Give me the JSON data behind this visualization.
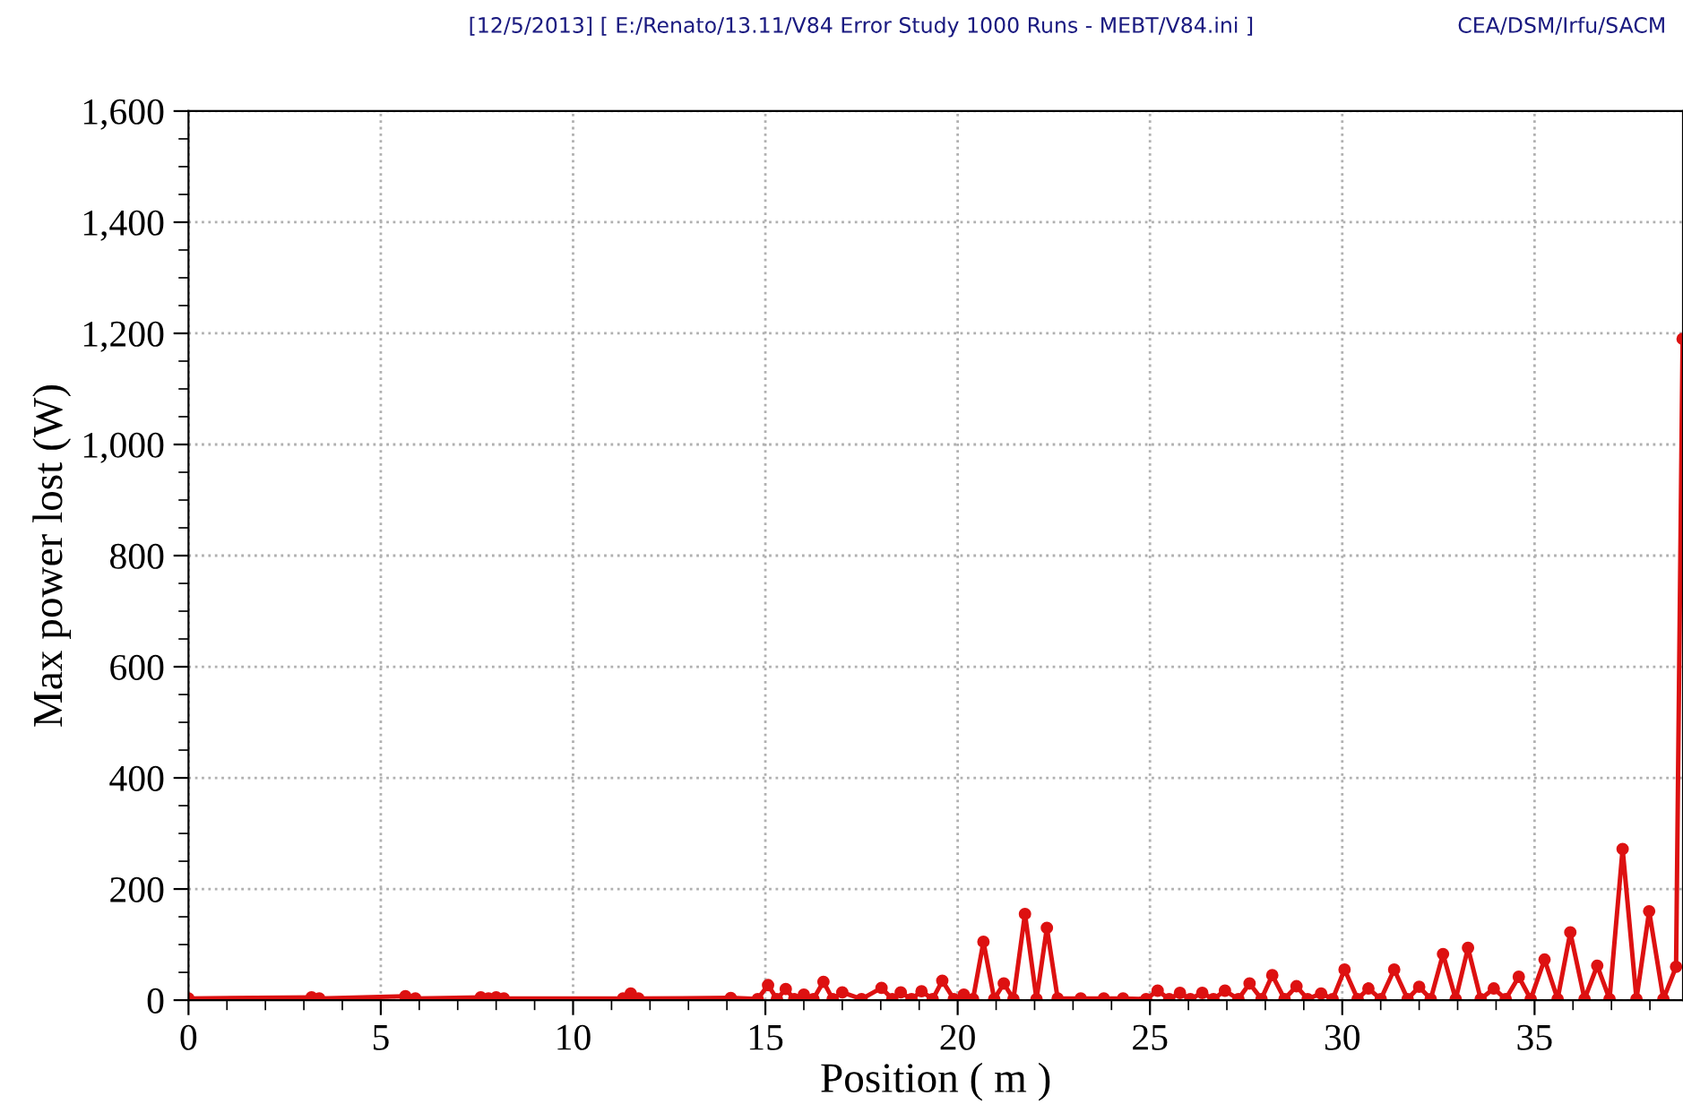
{
  "chart_data": {
    "type": "line",
    "xlabel": "Position ( m )",
    "ylabel": "Max power lost (W)",
    "annotations": [
      "[12/5/2013] [ E:/Renato/13.11/V84 Error Study 1000 Runs - MEBT/V84.ini ]",
      "CEA/DSM/Irfu/SACM"
    ],
    "x": [
      0,
      3.2,
      3.4,
      5.64,
      5.9,
      7.6,
      7.8,
      8.0,
      8.2,
      11.3,
      11.5,
      11.7,
      14.1,
      14.8,
      15.07,
      15.3,
      15.53,
      15.75,
      16.0,
      16.25,
      16.51,
      16.75,
      17.0,
      17.5,
      18.02,
      18.3,
      18.52,
      18.8,
      19.06,
      19.35,
      19.6,
      19.9,
      20.16,
      20.4,
      20.67,
      20.95,
      21.2,
      21.45,
      21.75,
      22.05,
      22.32,
      22.6,
      23.2,
      23.8,
      24.3,
      24.9,
      25.2,
      25.5,
      25.78,
      26.05,
      26.36,
      26.65,
      26.95,
      27.3,
      27.59,
      27.9,
      28.18,
      28.5,
      28.81,
      29.1,
      29.45,
      29.75,
      30.06,
      30.4,
      30.68,
      31.0,
      31.35,
      31.7,
      32.0,
      32.3,
      32.62,
      32.95,
      33.27,
      33.6,
      33.94,
      34.25,
      34.59,
      34.9,
      35.26,
      35.6,
      35.93,
      36.3,
      36.63,
      36.95,
      37.29,
      37.65,
      37.98,
      38.35,
      38.68,
      38.85
    ],
    "series": [
      {
        "color": "#dd1111",
        "values": [
          3,
          5,
          3,
          7,
          3,
          5,
          3,
          5,
          3,
          3,
          12,
          3,
          4,
          2,
          27,
          2,
          20,
          2,
          10,
          2,
          33,
          2,
          14,
          2,
          22,
          2,
          14,
          2,
          16,
          2,
          35,
          2,
          10,
          2,
          105,
          2,
          30,
          2,
          155,
          2,
          130,
          3,
          3,
          3,
          3,
          2,
          17,
          2,
          13,
          2,
          13,
          2,
          17,
          2,
          30,
          2,
          45,
          2,
          25,
          2,
          12,
          2,
          55,
          2,
          21,
          2,
          55,
          2,
          24,
          2,
          83,
          2,
          94,
          2,
          21,
          2,
          42,
          2,
          73,
          2,
          122,
          2,
          62,
          2,
          272,
          2,
          160,
          2,
          60,
          1190
        ]
      }
    ],
    "xlim": [
      0,
      38.86
    ],
    "xticks": [
      0,
      5,
      10,
      15,
      20,
      25,
      30,
      35
    ],
    "ylim": [
      0,
      1600
    ],
    "yticks": [
      0,
      200,
      400,
      600,
      800,
      {
        "value": 1000,
        "label": "1,000"
      },
      {
        "value": 1200,
        "label": "1,200"
      },
      {
        "value": 1400,
        "label": "1,400"
      },
      {
        "value": 1600,
        "label": "1,600"
      }
    ],
    "grid": true,
    "marker": "circle",
    "line_style": "solid",
    "legend": false
  }
}
